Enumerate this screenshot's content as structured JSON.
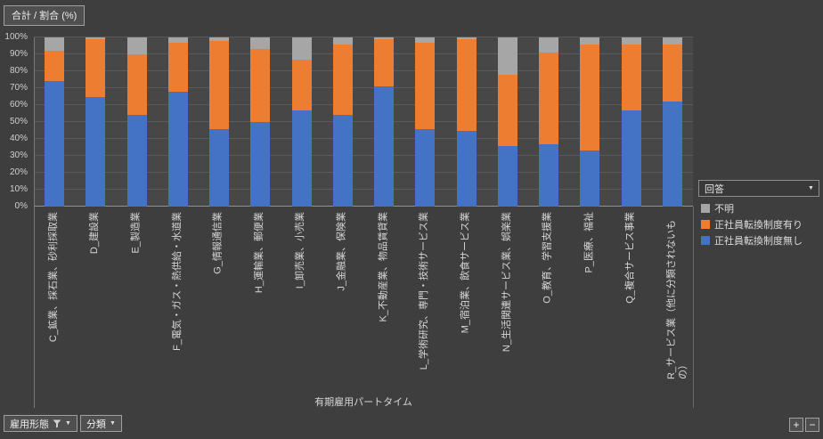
{
  "chart": {
    "field_button_label": "合計 / 割合 (%)",
    "x_axis_title": "有期雇用パートタイム",
    "legend_field": {
      "label": "回答"
    },
    "legend_entries": [
      {
        "label": "不明",
        "color": "#a6a6a6"
      },
      {
        "label": "正社員転換制度有り",
        "color": "#ed7d31"
      },
      {
        "label": "正社員転換制度無し",
        "color": "#4472c4"
      }
    ],
    "filter_buttons": [
      {
        "label": "雇用形態",
        "filtered": true
      },
      {
        "label": "分類",
        "filtered": false
      }
    ],
    "zoom_plus": "+",
    "zoom_minus": "−"
  },
  "chart_data": {
    "type": "bar",
    "subtype": "stacked-100-percent",
    "title": "合計 / 割合 (%)",
    "xlabel": "有期雇用パートタイム",
    "ylabel": "合計 / 割合 (%)",
    "ylim": [
      0,
      100
    ],
    "gridlines": true,
    "legend_position": "right",
    "stack_order": "bottom-to-top",
    "y_ticks": [
      "0%",
      "10%",
      "20%",
      "30%",
      "40%",
      "50%",
      "60%",
      "70%",
      "80%",
      "90%",
      "100%"
    ],
    "categories": [
      "C_鉱業、採石業、砂利採取業",
      "D_建設業",
      "E_製造業",
      "F_電気・ガス・熱供給・水道業",
      "G_情報通信業",
      "H_運輸業、郵便業",
      "I_卸売業、小売業",
      "J_金融業、保険業",
      "K_不動産業、物品賃貸業",
      "L_学術研究、専門・技術サービス業",
      "M_宿泊業、飲食サービス業",
      "N_生活関連サービス業、娯楽業",
      "O_教育、学習支援業",
      "P_医療、福祉",
      "Q_複合サービス事業",
      "R_サービス業（他に分類されないもの）"
    ],
    "series": [
      {
        "name": "正社員転換制度無し",
        "color": "#4472c4",
        "values": [
          74,
          65,
          54,
          68,
          46,
          50,
          57,
          54,
          71,
          46,
          45,
          36,
          37,
          33,
          57,
          62
        ]
      },
      {
        "name": "正社員転換制度有り",
        "color": "#ed7d31",
        "values": [
          18,
          34,
          36,
          29,
          52,
          43,
          30,
          42,
          28,
          51,
          54,
          42,
          54,
          63,
          39,
          34
        ]
      },
      {
        "name": "不明",
        "color": "#a6a6a6",
        "values": [
          8,
          1,
          10,
          3,
          2,
          7,
          13,
          4,
          1,
          3,
          1,
          22,
          9,
          4,
          4,
          4
        ]
      }
    ]
  }
}
